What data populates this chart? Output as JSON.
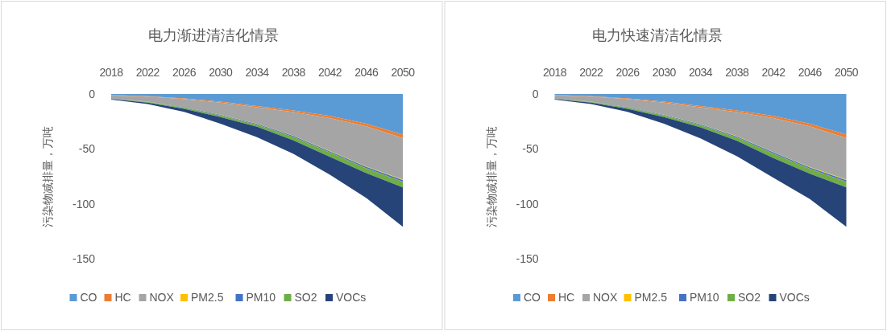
{
  "chart_data": [
    {
      "type": "area",
      "title": "电力渐进清洁化情景",
      "ylabel": "污染物减排量，万吨",
      "stacked": true,
      "legend": "bottom",
      "x": [
        2018,
        2022,
        2026,
        2030,
        2034,
        2038,
        2042,
        2046,
        2050
      ],
      "xlim": [
        2018,
        2050
      ],
      "xticks": [
        2018,
        2022,
        2026,
        2030,
        2034,
        2038,
        2042,
        2046,
        2050
      ],
      "ylim": [
        -150,
        0
      ],
      "yticks": [
        0,
        -50,
        -100,
        -150
      ],
      "series": [
        {
          "name": "CO",
          "color": "#5b9bd5",
          "values": [
            -1,
            -2,
            -4,
            -7,
            -11,
            -15,
            -20,
            -27,
            -37
          ]
        },
        {
          "name": "HC",
          "color": "#ed7d31",
          "values": [
            -0.2,
            -0.3,
            -0.5,
            -0.8,
            -1,
            -1.5,
            -2,
            -2.5,
            -3
          ]
        },
        {
          "name": "NOX",
          "color": "#a5a5a5",
          "values": [
            -2.8,
            -4.7,
            -7.5,
            -11,
            -15,
            -21.5,
            -30,
            -36.5,
            -38
          ]
        },
        {
          "name": "PM2.5",
          "color": "#ffc000",
          "values": [
            -0.1,
            -0.1,
            -0.1,
            -0.2,
            -0.2,
            -0.3,
            -0.3,
            -0.4,
            -0.5
          ]
        },
        {
          "name": "PM10",
          "color": "#4472c4",
          "values": [
            -0.2,
            -0.3,
            -0.4,
            -0.5,
            -0.7,
            -0.9,
            -1,
            -1.2,
            -1.5
          ]
        },
        {
          "name": "SO2",
          "color": "#70ad47",
          "values": [
            -0.3,
            -0.5,
            -1,
            -1.5,
            -2,
            -3,
            -4,
            -4.5,
            -5
          ]
        },
        {
          "name": "VOCs",
          "color": "#264478",
          "values": [
            -0.5,
            -1.3,
            -2.7,
            -6,
            -9.5,
            -12.4,
            -16.3,
            -22.6,
            -36
          ]
        }
      ]
    },
    {
      "type": "area",
      "title": "电力快速清洁化情景",
      "ylabel": "污染物减排量，万吨",
      "stacked": true,
      "legend": "bottom",
      "x": [
        2018,
        2022,
        2026,
        2030,
        2034,
        2038,
        2042,
        2046,
        2050
      ],
      "xlim": [
        2018,
        2050
      ],
      "xticks": [
        2018,
        2022,
        2026,
        2030,
        2034,
        2038,
        2042,
        2046,
        2050
      ],
      "ylim": [
        -150,
        0
      ],
      "yticks": [
        0,
        -50,
        -100,
        -150
      ],
      "series": [
        {
          "name": "CO",
          "color": "#5b9bd5",
          "values": [
            -1,
            -2,
            -4,
            -7,
            -11,
            -15,
            -20,
            -27,
            -37
          ]
        },
        {
          "name": "HC",
          "color": "#ed7d31",
          "values": [
            -0.2,
            -0.3,
            -0.5,
            -0.8,
            -1,
            -1.5,
            -2,
            -2.5,
            -3
          ]
        },
        {
          "name": "NOX",
          "color": "#a5a5a5",
          "values": [
            -2.8,
            -4.7,
            -7.5,
            -11,
            -15.5,
            -22,
            -31,
            -37,
            -38
          ]
        },
        {
          "name": "PM2.5",
          "color": "#ffc000",
          "values": [
            -0.1,
            -0.1,
            -0.1,
            -0.2,
            -0.2,
            -0.3,
            -0.3,
            -0.4,
            -0.5
          ]
        },
        {
          "name": "PM10",
          "color": "#4472c4",
          "values": [
            -0.2,
            -0.3,
            -0.4,
            -0.5,
            -0.7,
            -0.9,
            -1,
            -1.2,
            -1.5
          ]
        },
        {
          "name": "SO2",
          "color": "#70ad47",
          "values": [
            -0.3,
            -0.5,
            -1,
            -1.5,
            -2,
            -3,
            -4,
            -4.5,
            -5
          ]
        },
        {
          "name": "VOCs",
          "color": "#264478",
          "values": [
            -0.5,
            -1.3,
            -2.7,
            -6,
            -10,
            -14,
            -18,
            -23,
            -36
          ]
        }
      ]
    }
  ]
}
